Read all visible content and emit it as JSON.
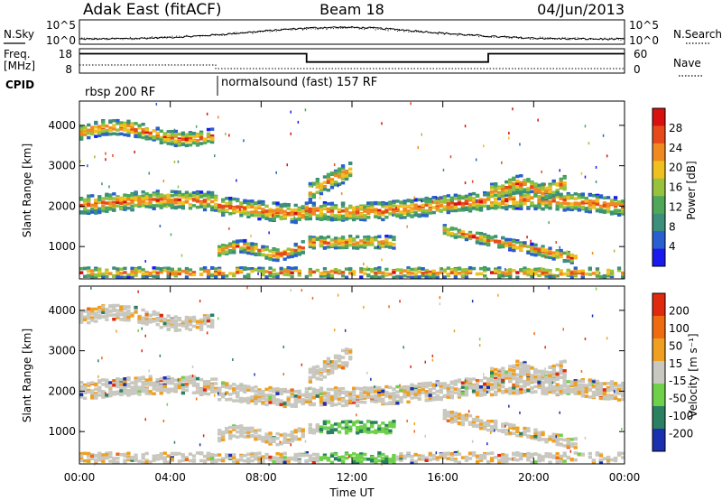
{
  "header": {
    "title": "Adak East (fitACF)",
    "beam": "Beam 18",
    "date": "04/Jun/2013"
  },
  "sky_panel": {
    "left_label": "N.Sky",
    "right_label": "N.Search",
    "ticks": [
      "10^5",
      "10^0"
    ]
  },
  "freq_panel": {
    "left_label_1": "Freq.",
    "left_label_2": "[MHz]",
    "right_label": "Nave",
    "left_ticks": [
      "18",
      "8"
    ],
    "right_ticks": [
      "60",
      "0"
    ],
    "cpid_label": "CPID",
    "modes": [
      {
        "label": "rbsp 200 RF",
        "start": 0,
        "end": 6
      },
      {
        "label": "normalsound (fast) 157 RF",
        "start": 6,
        "end": 24
      }
    ],
    "freq_steps": [
      {
        "start": 0,
        "end": 10,
        "level": 0.85
      },
      {
        "start": 10,
        "end": 18,
        "level": 0.45
      },
      {
        "start": 18,
        "end": 24,
        "level": 0.85
      }
    ]
  },
  "colors": {
    "power": [
      "#1a1aee",
      "#2a5fcf",
      "#3c8f7a",
      "#4fa85a",
      "#97c23c",
      "#f0c020",
      "#f08a20",
      "#e74a1a",
      "#d81010"
    ],
    "velocity": [
      "#1a30b0",
      "#2a8060",
      "#6fd04a",
      "#c8c8c0",
      "#f0a020",
      "#f06a10",
      "#e02a10"
    ]
  },
  "chart_data": [
    {
      "type": "heatmap",
      "name": "power",
      "ylabel": "Slant Range [km]",
      "y_ticks": [
        "4000",
        "3000",
        "2000",
        "1000"
      ],
      "ylim": [
        200,
        4600
      ],
      "xlim": [
        0,
        24
      ],
      "colorbar_label": "Power [dB]",
      "colorbar_ticks": [
        "28",
        "24",
        "20",
        "16",
        "12",
        "8",
        "4"
      ],
      "clim": [
        0,
        30
      ]
    },
    {
      "type": "heatmap",
      "name": "velocity",
      "ylabel": "Slant Range [km]",
      "y_ticks": [
        "4000",
        "3000",
        "2000",
        "1000"
      ],
      "ylim": [
        200,
        4600
      ],
      "xlim": [
        0,
        24
      ],
      "colorbar_label": "Velocity [m s⁻¹]",
      "colorbar_ticks": [
        "200",
        "100",
        "50",
        "15",
        "-15",
        "-50",
        "-100",
        "-200"
      ],
      "clim": [
        -250,
        250
      ]
    }
  ],
  "x_axis": {
    "label": "Time UT",
    "ticks": [
      "00:00",
      "04:00",
      "08:00",
      "12:00",
      "16:00",
      "20:00",
      "00:00"
    ]
  }
}
